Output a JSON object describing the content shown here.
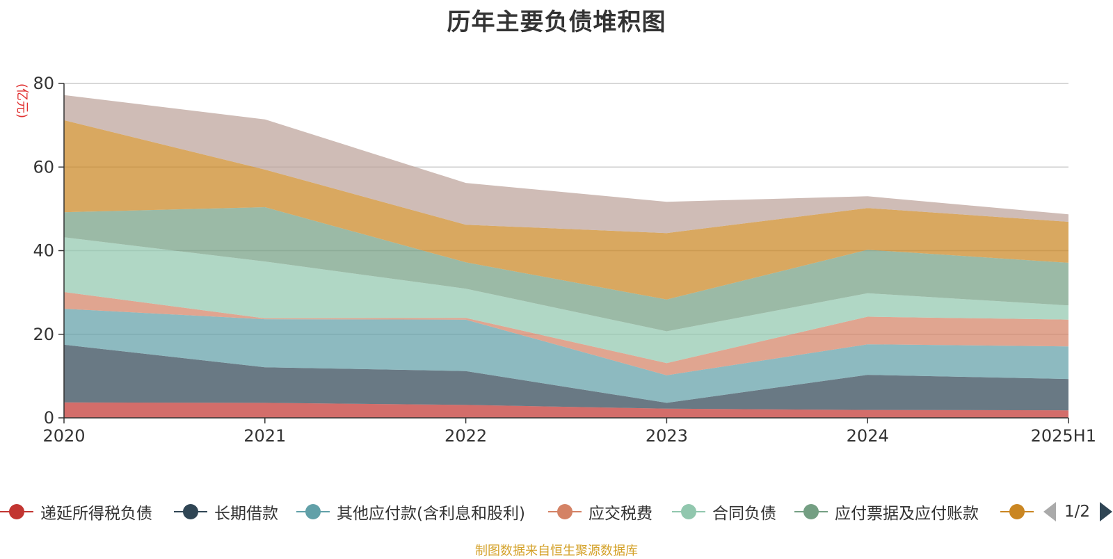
{
  "chart_data": {
    "type": "area",
    "stacked": true,
    "title": "历年主要负债堆积图",
    "ylabel": "(亿元)",
    "xlabel": "",
    "categories": [
      "2020",
      "2021",
      "2022",
      "2023",
      "2024",
      "2025H1"
    ],
    "ylim": [
      0,
      80
    ],
    "yticks": [
      0,
      20,
      40,
      60,
      80
    ],
    "grid": true,
    "series": [
      {
        "name": "递延所得税负债",
        "color": "#c23531",
        "values": [
          3.7,
          3.6,
          3.1,
          2.2,
          1.9,
          1.8
        ]
      },
      {
        "name": "长期借款",
        "color": "#2f4554",
        "values": [
          13.8,
          8.5,
          8.1,
          1.4,
          8.4,
          7.5
        ]
      },
      {
        "name": "其他应付款(含利息和股利)",
        "color": "#61a0a8",
        "values": [
          8.6,
          11.5,
          12.3,
          6.6,
          7.3,
          7.8
        ]
      },
      {
        "name": "应交税费",
        "color": "#d48265",
        "values": [
          4.0,
          0.2,
          0.4,
          2.9,
          6.6,
          6.4
        ]
      },
      {
        "name": "合同负债",
        "color": "#91c7ae",
        "values": [
          13.1,
          13.6,
          7.0,
          7.6,
          5.6,
          3.4
        ]
      },
      {
        "name": "应付票据及应付账款",
        "color": "#749f83",
        "values": [
          6.0,
          13.0,
          6.3,
          7.6,
          10.4,
          10.2
        ]
      },
      {
        "name": "",
        "color": "#ca8622",
        "values": [
          22.0,
          9.0,
          9.0,
          15.9,
          10.0,
          9.8
        ]
      },
      {
        "name": "",
        "color": "#bda29a",
        "values": [
          6.0,
          12.0,
          10.0,
          7.5,
          2.8,
          1.8
        ]
      }
    ]
  },
  "legend": {
    "items": [
      {
        "label": "递延所得税负债",
        "color": "#c23531"
      },
      {
        "label": "长期借款",
        "color": "#2f4554"
      },
      {
        "label": "其他应付款(含利息和股利)",
        "color": "#61a0a8"
      },
      {
        "label": "应交税费",
        "color": "#d48265"
      },
      {
        "label": "合同负债",
        "color": "#91c7ae"
      },
      {
        "label": "应付票据及应付账款",
        "color": "#749f83"
      },
      {
        "label": "",
        "color": "#ca8622"
      }
    ],
    "page_text": "1/2"
  },
  "source_text": "制图数据来自恒生聚源数据库"
}
